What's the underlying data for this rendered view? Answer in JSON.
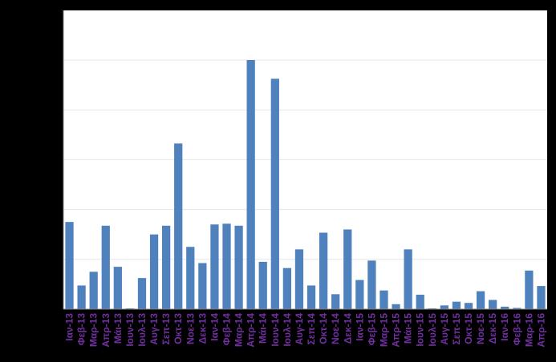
{
  "chart_data": {
    "type": "bar",
    "title": "",
    "xlabel": "",
    "ylabel": "",
    "ylim": [
      0,
      1
    ],
    "grid": true,
    "legend": "none",
    "colors": {
      "bar": "#4F81BD",
      "tick_label": "#7030A0",
      "plot_background": "#FFFFFF",
      "page_background": "#000000",
      "gridline": "#E6E6E6",
      "axis": "#808080"
    },
    "categories": [
      "Ιαν-13",
      "Φεβ-13",
      "Μαρ-13",
      "Απρ-13",
      "Μάι-13",
      "Ιουν-13",
      "Ιουλ-13",
      "Αυγ-13",
      "Σεπ-13",
      "Οκτ-13",
      "Νοε-13",
      "Δεκ-13",
      "Ιαν-14",
      "Φεβ-14",
      "Μαρ-14",
      "Απρ-14",
      "Μάι-14",
      "Ιουν-14",
      "Ιουλ-14",
      "Αυγ-14",
      "Σεπ-14",
      "Οκτ-14",
      "Νοε-14",
      "Δεκ-14",
      "Ιαν-15",
      "Φεβ-15",
      "Μαρ-15",
      "Απρ-15",
      "Μάι-15",
      "Ιουν-15",
      "Ιουλ-15",
      "Αυγ-15",
      "Σεπ-15",
      "Οκτ-15",
      "Νοε-15",
      "Δεκ-15",
      "Ιαν-16",
      "Φεβ-16",
      "Μαρ-16",
      "Απρ-16"
    ],
    "values": [
      0.35,
      0.095,
      0.15,
      0.335,
      0.17,
      0.003,
      0.125,
      0.3,
      0.335,
      0.665,
      0.25,
      0.185,
      0.34,
      0.343,
      0.335,
      1.0,
      0.19,
      0.925,
      0.165,
      0.24,
      0.095,
      0.307,
      0.06,
      0.32,
      0.117,
      0.195,
      0.075,
      0.02,
      0.24,
      0.058,
      0.003,
      0.015,
      0.03,
      0.025,
      0.072,
      0.037,
      0.01,
      0.005,
      0.155,
      0.093
    ],
    "y_gridline_count": 5
  }
}
